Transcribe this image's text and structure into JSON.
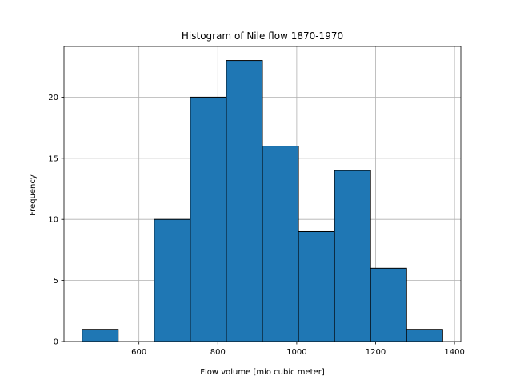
{
  "chart_data": {
    "type": "bar",
    "title": "Histogram of Nile flow 1870-1970",
    "xlabel": "Flow volume [mio cubic meter]",
    "ylabel": "Frequency",
    "bins": [
      {
        "x0": 456,
        "x1": 547.4,
        "count": 1
      },
      {
        "x0": 547.4,
        "x1": 638.8,
        "count": 0
      },
      {
        "x0": 638.8,
        "x1": 730.2,
        "count": 10
      },
      {
        "x0": 730.2,
        "x1": 821.6,
        "count": 20
      },
      {
        "x0": 821.6,
        "x1": 913.0,
        "count": 23
      },
      {
        "x0": 913.0,
        "x1": 1004.4,
        "count": 16
      },
      {
        "x0": 1004.4,
        "x1": 1095.8,
        "count": 9
      },
      {
        "x0": 1095.8,
        "x1": 1187.2,
        "count": 14
      },
      {
        "x0": 1187.2,
        "x1": 1278.6,
        "count": 6
      },
      {
        "x0": 1278.6,
        "x1": 1370,
        "count": 1
      }
    ],
    "xlim": [
      410,
      1416
    ],
    "ylim": [
      0,
      24.15
    ],
    "xticks": [
      600,
      800,
      1000,
      1200,
      1400
    ],
    "yticks": [
      0,
      5,
      10,
      15,
      20
    ],
    "grid": true,
    "bar_color": "#1f77b4",
    "edge_color": "#000000"
  }
}
